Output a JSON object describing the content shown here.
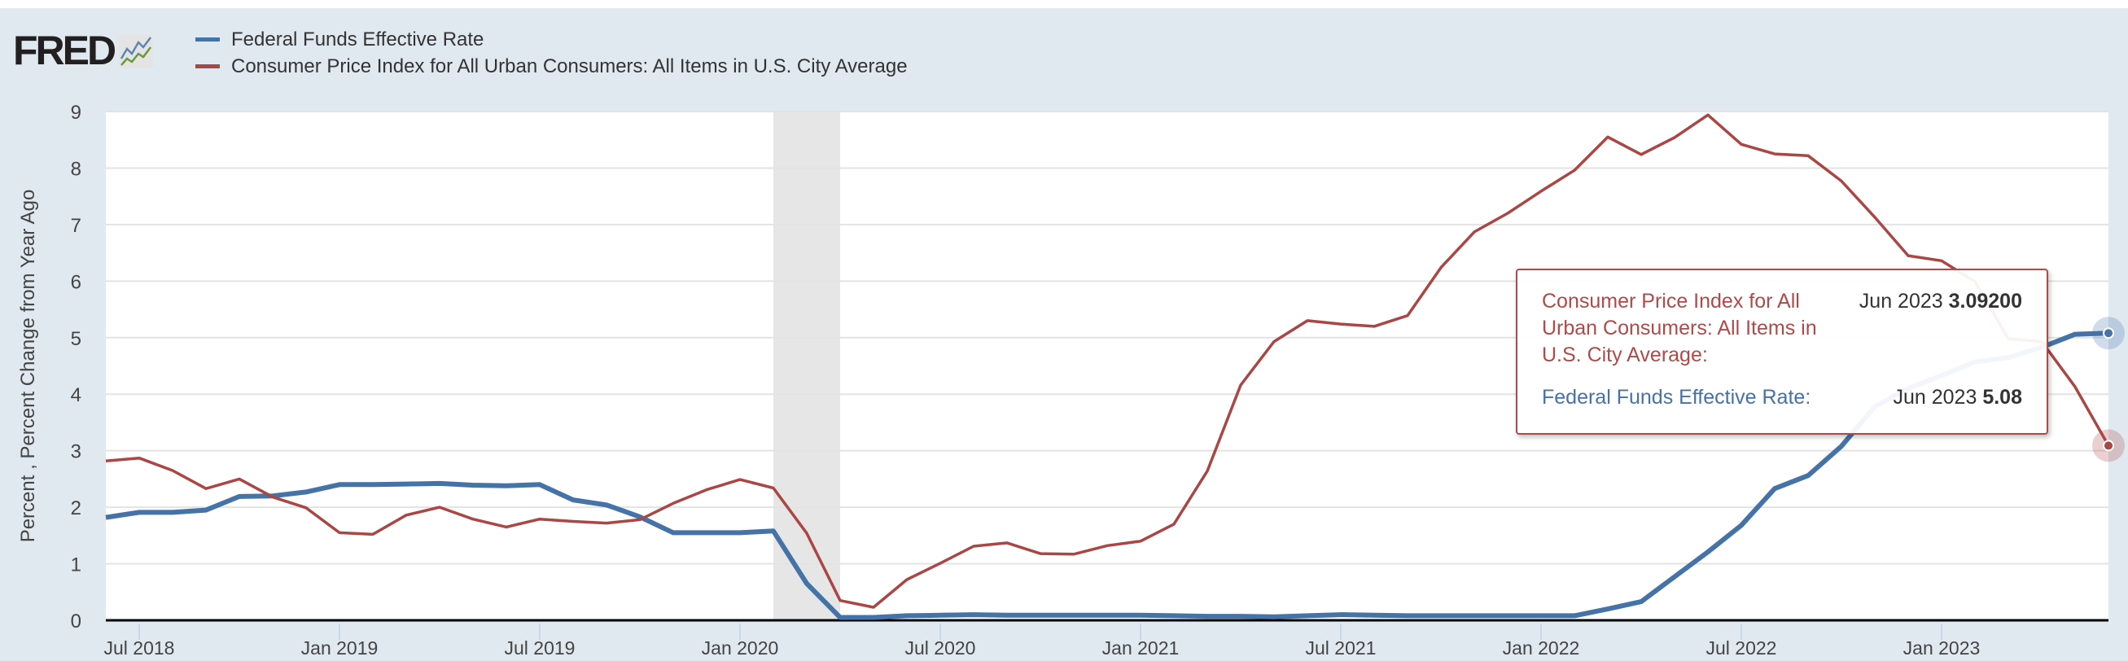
{
  "brand": {
    "logo": "FRED"
  },
  "chart_data": {
    "type": "line",
    "title": "",
    "ylabel": "Percent , Percent Change from Year Ago",
    "xlabel": "",
    "ylim": [
      0,
      9
    ],
    "yticks": [
      0,
      1,
      2,
      3,
      4,
      5,
      6,
      7,
      8,
      9
    ],
    "grid": true,
    "legend_placement": "top-left",
    "x_start": "2018-06",
    "x_end": "2023-06",
    "xtick_labels": [
      "Jul 2018",
      "Jan 2019",
      "Jul 2019",
      "Jan 2020",
      "Jul 2020",
      "Jan 2021",
      "Jul 2021",
      "Jan 2022",
      "Jul 2022",
      "Jan 2023"
    ],
    "recession": {
      "start": "2020-02",
      "end": "2020-04"
    },
    "series": [
      {
        "name": "Federal Funds Effective Rate",
        "color": "#4572a7",
        "values": [
          1.82,
          1.91,
          1.91,
          1.95,
          2.19,
          2.2,
          2.27,
          2.4,
          2.4,
          2.41,
          2.42,
          2.39,
          2.38,
          2.4,
          2.13,
          2.04,
          1.83,
          1.55,
          1.55,
          1.55,
          1.58,
          0.65,
          0.05,
          0.05,
          0.08,
          0.09,
          0.1,
          0.09,
          0.09,
          0.09,
          0.09,
          0.09,
          0.08,
          0.07,
          0.07,
          0.06,
          0.08,
          0.1,
          0.09,
          0.08,
          0.08,
          0.08,
          0.08,
          0.08,
          0.08,
          0.2,
          0.33,
          0.77,
          1.21,
          1.68,
          2.33,
          2.56,
          3.08,
          3.78,
          4.1,
          4.33,
          4.57,
          4.65,
          4.83,
          5.06,
          5.08
        ]
      },
      {
        "name": "Consumer Price Index for All Urban Consumers: All Items in U.S. City Average",
        "color": "#aa4643",
        "values": [
          2.82,
          2.87,
          2.65,
          2.33,
          2.5,
          2.18,
          1.99,
          1.55,
          1.52,
          1.86,
          2.0,
          1.79,
          1.65,
          1.79,
          1.75,
          1.72,
          1.78,
          2.07,
          2.31,
          2.49,
          2.34,
          1.54,
          0.35,
          0.23,
          0.72,
          1.01,
          1.31,
          1.37,
          1.18,
          1.17,
          1.32,
          1.4,
          1.7,
          2.64,
          4.16,
          4.93,
          5.3,
          5.24,
          5.2,
          5.39,
          6.24,
          6.87,
          7.2,
          7.59,
          7.96,
          8.55,
          8.24,
          8.54,
          8.94,
          8.42,
          8.25,
          8.22,
          7.77,
          7.13,
          6.45,
          6.36,
          5.99,
          4.98,
          4.93,
          4.13,
          3.09
        ]
      }
    ]
  },
  "tooltip": {
    "cpi_label": "Consumer Price Index for All Urban Consumers: All Items in U.S. City Average:",
    "cpi_date": "Jun 2023",
    "cpi_value": "3.09200",
    "ff_label": "Federal Funds Effective Rate:",
    "ff_date": "Jun 2023",
    "ff_value": "5.08"
  }
}
